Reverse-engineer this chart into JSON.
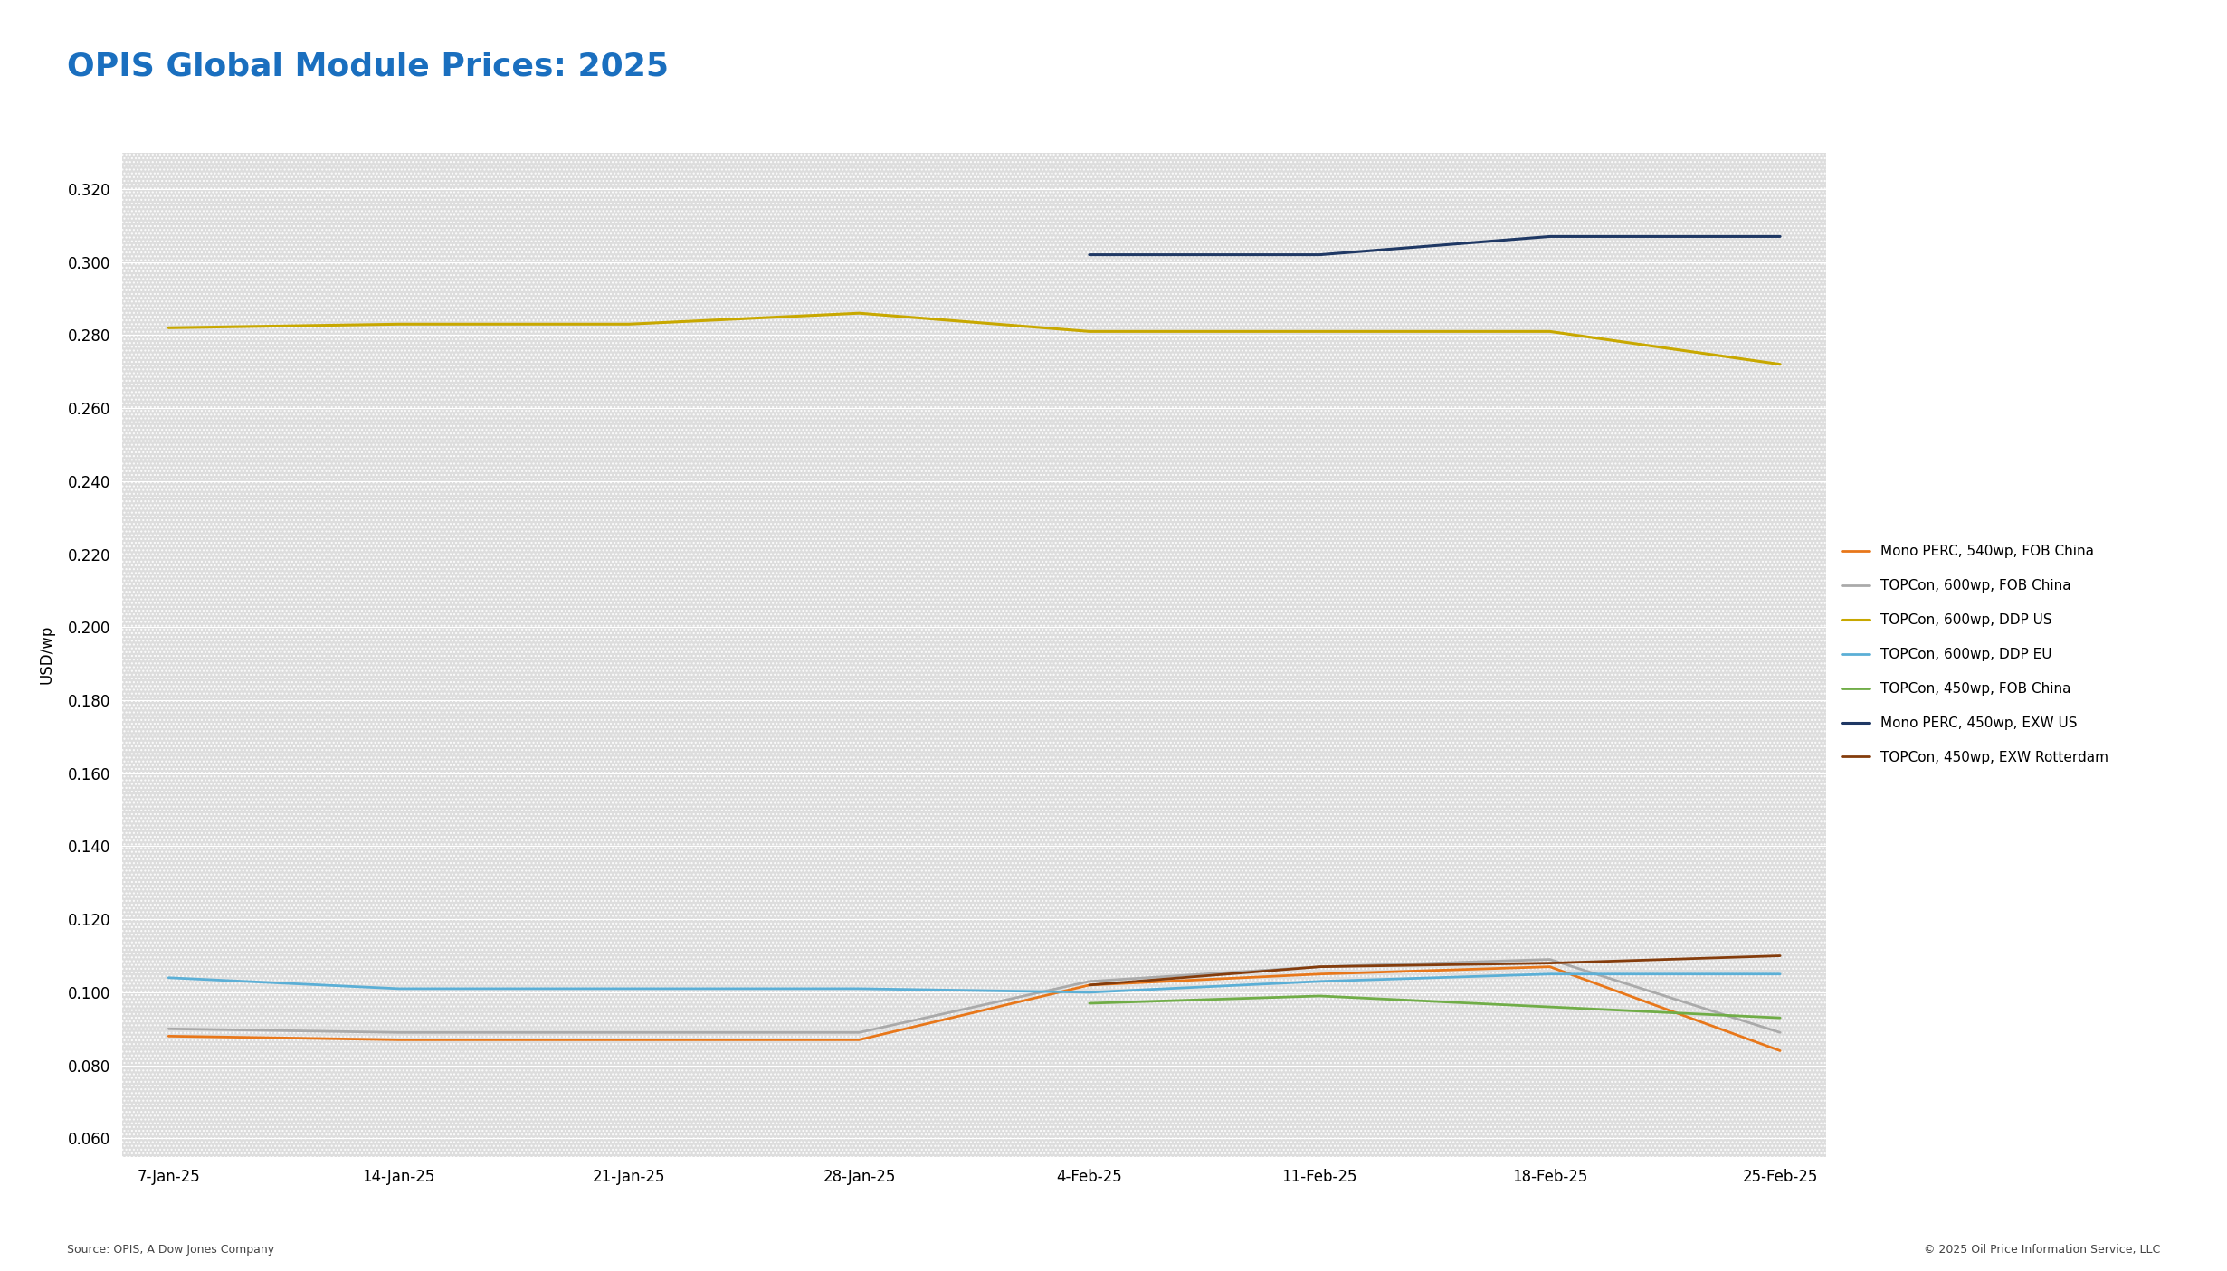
{
  "title": "OPIS Global Module Prices: 2025",
  "title_color": "#1A6FBF",
  "ylabel": "USD/wp",
  "source_left": "Source: OPIS, A Dow Jones Company",
  "source_right": "© 2025 Oil Price Information Service, LLC",
  "x_labels": [
    "7-Jan-25",
    "14-Jan-25",
    "21-Jan-25",
    "28-Jan-25",
    "4-Feb-25",
    "11-Feb-25",
    "18-Feb-25",
    "25-Feb-25"
  ],
  "ylim": [
    0.055,
    0.33
  ],
  "yticks": [
    0.06,
    0.08,
    0.1,
    0.12,
    0.14,
    0.16,
    0.18,
    0.2,
    0.22,
    0.24,
    0.26,
    0.28,
    0.3,
    0.32
  ],
  "series": [
    {
      "label": "Mono PERC, 540wp, FOB China",
      "color": "#E8771A",
      "linewidth": 2.0,
      "values": [
        0.088,
        0.087,
        0.087,
        0.087,
        0.102,
        0.105,
        0.107,
        0.084
      ]
    },
    {
      "label": "TOPCon, 600wp, FOB China",
      "color": "#AAAAAA",
      "linewidth": 2.0,
      "values": [
        0.09,
        0.089,
        0.089,
        0.089,
        0.103,
        0.107,
        0.109,
        0.089
      ]
    },
    {
      "label": "TOPCon, 600wp, DDP US",
      "color": "#C8A800",
      "linewidth": 2.2,
      "values": [
        0.282,
        0.283,
        0.283,
        0.286,
        0.281,
        0.281,
        0.281,
        0.272
      ]
    },
    {
      "label": "TOPCon, 600wp, DDP EU",
      "color": "#5BAFD6",
      "linewidth": 2.0,
      "values": [
        0.104,
        0.101,
        0.101,
        0.101,
        0.1,
        0.103,
        0.105,
        0.105
      ]
    },
    {
      "label": "TOPCon, 450wp, FOB China",
      "color": "#70AD47",
      "linewidth": 2.0,
      "values": [
        null,
        null,
        null,
        null,
        0.097,
        0.099,
        0.096,
        0.093
      ]
    },
    {
      "label": "Mono PERC, 450wp, EXW US",
      "color": "#1F3864",
      "linewidth": 2.2,
      "values": [
        null,
        null,
        null,
        null,
        0.302,
        0.302,
        0.307,
        0.307
      ]
    },
    {
      "label": "TOPCon, 450wp, EXW Rotterdam",
      "color": "#843C0C",
      "linewidth": 2.0,
      "values": [
        null,
        null,
        null,
        null,
        0.102,
        0.107,
        0.108,
        0.11
      ]
    }
  ],
  "fig_bg": "#FFFFFF",
  "plot_bg": "#E4E4E4",
  "grid_color": "#FFFFFF",
  "figsize": [
    24.61,
    14.05
  ],
  "dpi": 100
}
